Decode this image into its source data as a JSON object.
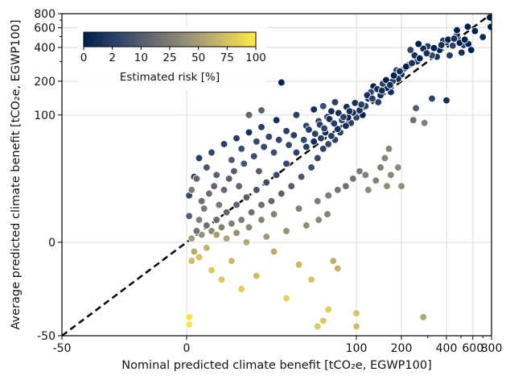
{
  "chart_data": {
    "type": "scatter",
    "title": "",
    "xlabel": "Nominal predicted climate benefit [tCO₂e, EGWP100]",
    "ylabel": "Average predicted climate benefit [tCO₂e, EGWP100]",
    "xlim": [
      -50,
      800
    ],
    "ylim": [
      -50,
      800
    ],
    "scale": "symlog",
    "x_ticks": [
      "-50",
      "0",
      "100",
      "200",
      "400",
      "600",
      "800"
    ],
    "y_ticks": [
      "-50",
      "0",
      "100",
      "200",
      "400",
      "600",
      "800"
    ],
    "minor_ticks": [
      300,
      500,
      700
    ],
    "grid": true,
    "reference_line": {
      "style": "dashed",
      "color": "#000000",
      "from": [
        -50,
        -50
      ],
      "to": [
        800,
        800
      ]
    },
    "colorbar": {
      "label": "Estimated risk [%]",
      "ticks": [
        "0",
        "2",
        "10",
        "25",
        "50",
        "75",
        "100"
      ],
      "tick_values": [
        0,
        2,
        10,
        25,
        50,
        75,
        100
      ],
      "colormap": "cividis",
      "colors": [
        "#00204d",
        "#31446b",
        "#666970",
        "#958f78",
        "#cbba69",
        "#ffea46"
      ],
      "placement": "top-left"
    },
    "points": [
      {
        "x": 780,
        "y": 740,
        "risk": 0
      },
      {
        "x": 790,
        "y": 610,
        "risk": 0
      },
      {
        "x": 700,
        "y": 495,
        "risk": 1
      },
      {
        "x": 555,
        "y": 612,
        "risk": 0
      },
      {
        "x": 520,
        "y": 420,
        "risk": 2
      },
      {
        "x": 560,
        "y": 430,
        "risk": 0
      },
      {
        "x": 505,
        "y": 360,
        "risk": 1
      },
      {
        "x": 585,
        "y": 380,
        "risk": 0
      },
      {
        "x": 470,
        "y": 520,
        "risk": 1
      },
      {
        "x": 440,
        "y": 415,
        "risk": 3
      },
      {
        "x": 470,
        "y": 570,
        "risk": 0
      },
      {
        "x": 420,
        "y": 340,
        "risk": 2
      },
      {
        "x": 400,
        "y": 445,
        "risk": 1
      },
      {
        "x": 380,
        "y": 460,
        "risk": 2
      },
      {
        "x": 360,
        "y": 380,
        "risk": 0
      },
      {
        "x": 345,
        "y": 330,
        "risk": 1
      },
      {
        "x": 320,
        "y": 340,
        "risk": 4
      },
      {
        "x": 300,
        "y": 410,
        "risk": 2
      },
      {
        "x": 280,
        "y": 390,
        "risk": 1
      },
      {
        "x": 260,
        "y": 430,
        "risk": 0
      },
      {
        "x": 255,
        "y": 300,
        "risk": 2
      },
      {
        "x": 245,
        "y": 340,
        "risk": 1
      },
      {
        "x": 230,
        "y": 380,
        "risk": 3
      },
      {
        "x": 225,
        "y": 280,
        "risk": 1
      },
      {
        "x": 210,
        "y": 260,
        "risk": 2
      },
      {
        "x": 200,
        "y": 230,
        "risk": 0
      },
      {
        "x": 190,
        "y": 210,
        "risk": 1
      },
      {
        "x": 185,
        "y": 250,
        "risk": 4
      },
      {
        "x": 175,
        "y": 200,
        "risk": 2
      },
      {
        "x": 170,
        "y": 160,
        "risk": 1
      },
      {
        "x": 160,
        "y": 175,
        "risk": 0
      },
      {
        "x": 150,
        "y": 190,
        "risk": 3
      },
      {
        "x": 145,
        "y": 150,
        "risk": 1
      },
      {
        "x": 140,
        "y": 130,
        "risk": 2
      },
      {
        "x": 130,
        "y": 180,
        "risk": 0
      },
      {
        "x": 125,
        "y": 160,
        "risk": 5
      },
      {
        "x": 120,
        "y": 140,
        "risk": 1
      },
      {
        "x": 115,
        "y": 120,
        "risk": 2
      },
      {
        "x": 110,
        "y": 100,
        "risk": 0
      },
      {
        "x": 105,
        "y": 110,
        "risk": 1
      },
      {
        "x": 100,
        "y": 95,
        "risk": 3
      },
      {
        "x": 95,
        "y": 105,
        "risk": 1
      },
      {
        "x": 92,
        "y": 85,
        "risk": 2
      },
      {
        "x": 88,
        "y": 95,
        "risk": 0
      },
      {
        "x": 85,
        "y": 80,
        "risk": 1
      },
      {
        "x": 80,
        "y": 90,
        "risk": 4
      },
      {
        "x": 78,
        "y": 70,
        "risk": 2
      },
      {
        "x": 75,
        "y": 75,
        "risk": 1
      },
      {
        "x": 72,
        "y": 60,
        "risk": 3
      },
      {
        "x": 70,
        "y": 85,
        "risk": 0
      },
      {
        "x": 68,
        "y": 65,
        "risk": 2
      },
      {
        "x": 65,
        "y": 55,
        "risk": 5
      },
      {
        "x": 62,
        "y": 70,
        "risk": 1
      },
      {
        "x": 60,
        "y": 50,
        "risk": 3
      },
      {
        "x": 58,
        "y": 62,
        "risk": 2
      },
      {
        "x": 55,
        "y": 45,
        "risk": 4
      },
      {
        "x": 52,
        "y": 58,
        "risk": 1
      },
      {
        "x": 50,
        "y": 40,
        "risk": 6
      },
      {
        "x": 48,
        "y": 52,
        "risk": 2
      },
      {
        "x": 46,
        "y": 35,
        "risk": 8
      },
      {
        "x": 44,
        "y": 48,
        "risk": 3
      },
      {
        "x": 42,
        "y": 30,
        "risk": 10
      },
      {
        "x": 40,
        "y": 42,
        "risk": 4
      },
      {
        "x": 38,
        "y": 26,
        "risk": 12
      },
      {
        "x": 36,
        "y": 36,
        "risk": 5
      },
      {
        "x": 34,
        "y": 22,
        "risk": 15
      },
      {
        "x": 32,
        "y": 32,
        "risk": 6
      },
      {
        "x": 30,
        "y": 20,
        "risk": 18
      },
      {
        "x": 28,
        "y": 28,
        "risk": 8
      },
      {
        "x": 26,
        "y": 16,
        "risk": 20
      },
      {
        "x": 24,
        "y": 24,
        "risk": 10
      },
      {
        "x": 22,
        "y": 12,
        "risk": 25
      },
      {
        "x": 20,
        "y": 20,
        "risk": 12
      },
      {
        "x": 18,
        "y": 10,
        "risk": 28
      },
      {
        "x": 16,
        "y": 16,
        "risk": 14
      },
      {
        "x": 14,
        "y": 8,
        "risk": 30
      },
      {
        "x": 12,
        "y": 12,
        "risk": 16
      },
      {
        "x": 10,
        "y": 6,
        "risk": 35
      },
      {
        "x": 8,
        "y": 9,
        "risk": 18
      },
      {
        "x": 6,
        "y": 4,
        "risk": 40
      },
      {
        "x": 4,
        "y": 6,
        "risk": 20
      },
      {
        "x": 2,
        "y": 2,
        "risk": 45
      },
      {
        "x": 1,
        "y": 14,
        "risk": 10
      },
      {
        "x": 1,
        "y": 25,
        "risk": 5
      },
      {
        "x": 3,
        "y": 35,
        "risk": 3
      },
      {
        "x": 5,
        "y": 45,
        "risk": 2
      },
      {
        "x": 3,
        "y": -5,
        "risk": 60
      },
      {
        "x": 2,
        "y": -10,
        "risk": 70
      },
      {
        "x": 1,
        "y": -40,
        "risk": 95
      },
      {
        "x": 1,
        "y": -44,
        "risk": 98
      },
      {
        "x": 5,
        "y": -8,
        "risk": 75
      },
      {
        "x": 8,
        "y": -3,
        "risk": 65
      },
      {
        "x": 10,
        "y": -15,
        "risk": 80
      },
      {
        "x": 14,
        "y": -20,
        "risk": 78
      },
      {
        "x": 18,
        "y": -10,
        "risk": 70
      },
      {
        "x": 22,
        "y": -25,
        "risk": 82
      },
      {
        "x": 28,
        "y": -18,
        "risk": 72
      },
      {
        "x": 35,
        "y": -5,
        "risk": 60
      },
      {
        "x": 40,
        "y": -30,
        "risk": 85
      },
      {
        "x": 45,
        "y": -12,
        "risk": 68
      },
      {
        "x": 50,
        "y": -20,
        "risk": 75
      },
      {
        "x": 55,
        "y": -45,
        "risk": 80
      },
      {
        "x": 60,
        "y": -42,
        "risk": 78
      },
      {
        "x": 65,
        "y": -36,
        "risk": 82
      },
      {
        "x": 70,
        "y": -10,
        "risk": 62
      },
      {
        "x": 75,
        "y": -14,
        "risk": 66
      },
      {
        "x": 100,
        "y": -38,
        "risk": 75
      },
      {
        "x": 100,
        "y": -45,
        "risk": 72
      },
      {
        "x": 280,
        "y": -40,
        "risk": 55
      },
      {
        "x": 20,
        "y": 5,
        "risk": 40
      },
      {
        "x": 25,
        "y": 8,
        "risk": 35
      },
      {
        "x": 30,
        "y": 12,
        "risk": 32
      },
      {
        "x": 35,
        "y": 15,
        "risk": 30
      },
      {
        "x": 45,
        "y": 18,
        "risk": 28
      },
      {
        "x": 55,
        "y": 22,
        "risk": 26
      },
      {
        "x": 65,
        "y": 25,
        "risk": 24
      },
      {
        "x": 75,
        "y": 28,
        "risk": 22
      },
      {
        "x": 85,
        "y": 30,
        "risk": 20
      },
      {
        "x": 95,
        "y": 34,
        "risk": 22
      },
      {
        "x": 105,
        "y": 38,
        "risk": 25
      },
      {
        "x": 115,
        "y": 36,
        "risk": 30
      },
      {
        "x": 120,
        "y": 28,
        "risk": 35
      },
      {
        "x": 135,
        "y": 33,
        "risk": 30
      },
      {
        "x": 145,
        "y": 40,
        "risk": 28
      },
      {
        "x": 155,
        "y": 45,
        "risk": 32
      },
      {
        "x": 160,
        "y": 30,
        "risk": 38
      },
      {
        "x": 165,
        "y": 50,
        "risk": 30
      },
      {
        "x": 170,
        "y": 36,
        "risk": 34
      },
      {
        "x": 190,
        "y": 40,
        "risk": 36
      },
      {
        "x": 200,
        "y": 30,
        "risk": 40
      },
      {
        "x": 240,
        "y": 90,
        "risk": 20
      },
      {
        "x": 250,
        "y": 115,
        "risk": 10
      },
      {
        "x": 285,
        "y": 85,
        "risk": 30
      },
      {
        "x": 320,
        "y": 140,
        "risk": 3
      },
      {
        "x": 400,
        "y": 135,
        "risk": 1
      },
      {
        "x": 2,
        "y": 28,
        "risk": 25
      },
      {
        "x": 4,
        "y": 34,
        "risk": 15
      },
      {
        "x": 6,
        "y": 22,
        "risk": 20
      },
      {
        "x": 8,
        "y": 40,
        "risk": 8
      },
      {
        "x": 10,
        "y": 48,
        "risk": 4
      },
      {
        "x": 12,
        "y": 36,
        "risk": 12
      },
      {
        "x": 15,
        "y": 55,
        "risk": 3
      },
      {
        "x": 18,
        "y": 44,
        "risk": 10
      },
      {
        "x": 20,
        "y": 62,
        "risk": 2
      },
      {
        "x": 22,
        "y": 50,
        "risk": 6
      },
      {
        "x": 25,
        "y": 70,
        "risk": 1
      },
      {
        "x": 28,
        "y": 58,
        "risk": 5
      },
      {
        "x": 30,
        "y": 78,
        "risk": 2
      },
      {
        "x": 33,
        "y": 64,
        "risk": 4
      },
      {
        "x": 36,
        "y": 90,
        "risk": 1
      },
      {
        "x": 40,
        "y": 72,
        "risk": 3
      },
      {
        "x": 44,
        "y": 100,
        "risk": 2
      },
      {
        "x": 48,
        "y": 80,
        "risk": 4
      },
      {
        "x": 52,
        "y": 112,
        "risk": 1
      },
      {
        "x": 56,
        "y": 88,
        "risk": 3
      },
      {
        "x": 60,
        "y": 120,
        "risk": 6
      },
      {
        "x": 64,
        "y": 96,
        "risk": 2
      },
      {
        "x": 68,
        "y": 108,
        "risk": 1
      },
      {
        "x": 72,
        "y": 130,
        "risk": 3
      },
      {
        "x": 38,
        "y": 195,
        "risk": 0
      },
      {
        "x": 30,
        "y": 110,
        "risk": 12
      },
      {
        "x": 25,
        "y": 100,
        "risk": 15
      },
      {
        "x": 12,
        "y": 4,
        "risk": 50
      },
      {
        "x": 16,
        "y": 2,
        "risk": 55
      },
      {
        "x": 24,
        "y": 0,
        "risk": 58
      },
      {
        "x": 32,
        "y": 3,
        "risk": 45
      },
      {
        "x": 40,
        "y": 6,
        "risk": 42
      },
      {
        "x": 48,
        "y": 9,
        "risk": 38
      },
      {
        "x": 56,
        "y": 12,
        "risk": 34
      },
      {
        "x": 64,
        "y": 15,
        "risk": 30
      },
      {
        "x": 5,
        "y": 12,
        "risk": 30
      },
      {
        "x": 7,
        "y": 18,
        "risk": 24
      },
      {
        "x": 9,
        "y": 26,
        "risk": 18
      },
      {
        "x": 11,
        "y": 30,
        "risk": 14
      },
      {
        "x": 13,
        "y": 20,
        "risk": 22
      },
      {
        "x": 15,
        "y": 28,
        "risk": 16
      },
      {
        "x": 17,
        "y": 34,
        "risk": 12
      },
      {
        "x": 19,
        "y": 38,
        "risk": 10
      },
      {
        "x": 21,
        "y": 30,
        "risk": 14
      },
      {
        "x": 23,
        "y": 42,
        "risk": 8
      },
      {
        "x": 27,
        "y": 46,
        "risk": 6
      },
      {
        "x": 29,
        "y": 38,
        "risk": 10
      },
      {
        "x": 31,
        "y": 52,
        "risk": 5
      },
      {
        "x": 35,
        "y": 48,
        "risk": 6
      },
      {
        "x": 37,
        "y": 60,
        "risk": 4
      },
      {
        "x": 41,
        "y": 54,
        "risk": 5
      },
      {
        "x": 43,
        "y": 66,
        "risk": 3
      },
      {
        "x": 47,
        "y": 60,
        "risk": 4
      },
      {
        "x": 49,
        "y": 74,
        "risk": 2
      },
      {
        "x": 53,
        "y": 68,
        "risk": 3
      },
      {
        "x": 57,
        "y": 82,
        "risk": 2
      },
      {
        "x": 61,
        "y": 76,
        "risk": 3
      },
      {
        "x": 66,
        "y": 92,
        "risk": 1
      },
      {
        "x": 71,
        "y": 84,
        "risk": 2
      },
      {
        "x": 76,
        "y": 104,
        "risk": 1
      },
      {
        "x": 82,
        "y": 96,
        "risk": 2
      },
      {
        "x": 86,
        "y": 118,
        "risk": 1
      },
      {
        "x": 90,
        "y": 108,
        "risk": 1
      },
      {
        "x": 98,
        "y": 128,
        "risk": 1
      },
      {
        "x": 108,
        "y": 124,
        "risk": 2
      },
      {
        "x": 118,
        "y": 150,
        "risk": 1
      },
      {
        "x": 128,
        "y": 140,
        "risk": 2
      },
      {
        "x": 138,
        "y": 170,
        "risk": 1
      },
      {
        "x": 148,
        "y": 165,
        "risk": 1
      },
      {
        "x": 158,
        "y": 205,
        "risk": 0
      },
      {
        "x": 168,
        "y": 185,
        "risk": 1
      },
      {
        "x": 178,
        "y": 225,
        "risk": 0
      },
      {
        "x": 195,
        "y": 245,
        "risk": 1
      },
      {
        "x": 215,
        "y": 270,
        "risk": 0
      },
      {
        "x": 235,
        "y": 290,
        "risk": 1
      },
      {
        "x": 265,
        "y": 320,
        "risk": 0
      },
      {
        "x": 295,
        "y": 355,
        "risk": 1
      },
      {
        "x": 330,
        "y": 395,
        "risk": 0
      },
      {
        "x": 370,
        "y": 420,
        "risk": 1
      },
      {
        "x": 410,
        "y": 470,
        "risk": 0
      },
      {
        "x": 450,
        "y": 480,
        "risk": 1
      },
      {
        "x": 490,
        "y": 440,
        "risk": 0
      },
      {
        "x": 530,
        "y": 470,
        "risk": 0
      },
      {
        "x": 620,
        "y": 560,
        "risk": 0
      }
    ]
  }
}
